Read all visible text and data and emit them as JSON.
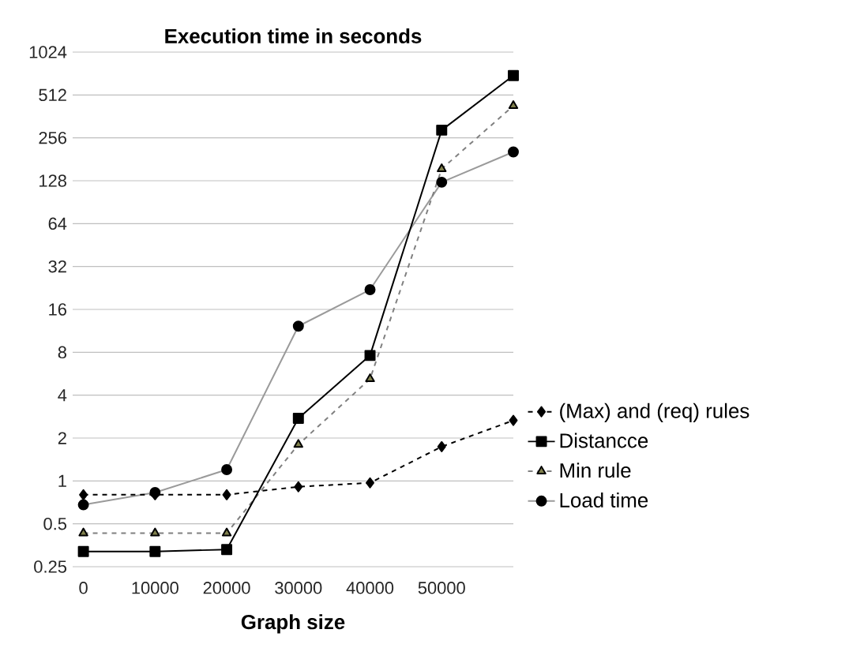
{
  "chart_data": {
    "type": "line",
    "title": "Execution time in seconds",
    "xlabel": "Graph size",
    "categories": [
      "0",
      "10000",
      "20000",
      "30000",
      "40000",
      "50000",
      null
    ],
    "log": "y",
    "ylim": [
      0.25,
      1024
    ],
    "yticks": [
      0.25,
      0.5,
      1,
      2,
      4,
      8,
      16,
      32,
      64,
      128,
      256,
      512,
      1024
    ],
    "grid": "y",
    "legend": "right",
    "series": [
      {
        "name": "(Max) and (req)  rules",
        "color": "#000000",
        "marker": "diamond",
        "line_style": "dashed",
        "values": [
          0.8,
          0.8,
          0.8,
          0.91,
          0.97,
          1.74,
          2.66
        ]
      },
      {
        "name": "Distancce",
        "color": "#000000",
        "marker": "square",
        "line_style": "solid",
        "values": [
          0.32,
          0.32,
          0.33,
          2.75,
          7.6,
          290,
          700
        ]
      },
      {
        "name": "Min rule",
        "color": "#808080",
        "marker": "triangle",
        "line_style": "dashed",
        "values": [
          0.43,
          0.43,
          0.43,
          1.8,
          5.2,
          155,
          430
        ]
      },
      {
        "name": "Load time",
        "color": "#9a9a9a",
        "marker": "circle",
        "line_style": "solid",
        "values": [
          0.68,
          0.83,
          1.2,
          12.2,
          22,
          125,
          204
        ]
      }
    ]
  }
}
